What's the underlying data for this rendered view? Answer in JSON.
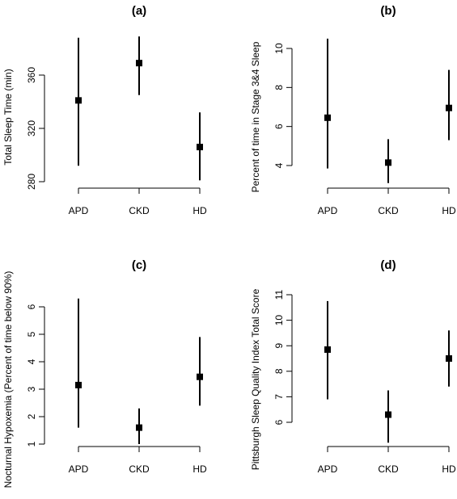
{
  "chart_data": [
    {
      "type": "scatter",
      "title": "(a)",
      "ylabel": "Total Sleep Time (min)",
      "xlabel": "",
      "categories": [
        "APD",
        "CKD",
        "HD"
      ],
      "yticks": [
        280,
        320,
        360
      ],
      "ylim": [
        280,
        380
      ],
      "series": [
        {
          "values": [
            341,
            369,
            306
          ],
          "lower": [
            292,
            345,
            281
          ],
          "upper": [
            388,
            389,
            332
          ]
        }
      ]
    },
    {
      "type": "scatter",
      "title": "(b)",
      "ylabel": "Percent of time in Stage 3&4 Sleep",
      "xlabel": "",
      "categories": [
        "APD",
        "CKD",
        "HD"
      ],
      "yticks": [
        4,
        6,
        8,
        10
      ],
      "ylim": [
        4,
        10
      ],
      "series": [
        {
          "values": [
            6.45,
            4.15,
            6.95
          ],
          "lower": [
            3.85,
            3.1,
            5.3
          ],
          "upper": [
            10.5,
            5.35,
            8.9
          ]
        }
      ]
    },
    {
      "type": "scatter",
      "title": "(c)",
      "ylabel": "Nocturnal Hypoxemia (Percent of time below 90%)",
      "xlabel": "",
      "categories": [
        "APD",
        "CKD",
        "HD"
      ],
      "yticks": [
        1,
        2,
        3,
        4,
        5,
        6
      ],
      "ylim": [
        1,
        6
      ],
      "series": [
        {
          "values": [
            3.15,
            1.6,
            3.45
          ],
          "lower": [
            1.6,
            1.0,
            2.4
          ],
          "upper": [
            6.3,
            2.3,
            4.9
          ]
        }
      ]
    },
    {
      "type": "scatter",
      "title": "(d)",
      "ylabel": "Pittsburgh Sleep Quality Index Total Score",
      "xlabel": "",
      "categories": [
        "APD",
        "CKD",
        "HD"
      ],
      "yticks": [
        6,
        7,
        8,
        9,
        10,
        11
      ],
      "ylim": [
        6,
        11
      ],
      "series": [
        {
          "values": [
            8.85,
            6.3,
            8.5
          ],
          "lower": [
            6.9,
            5.2,
            7.4
          ],
          "upper": [
            10.75,
            7.25,
            9.6
          ]
        }
      ]
    }
  ]
}
